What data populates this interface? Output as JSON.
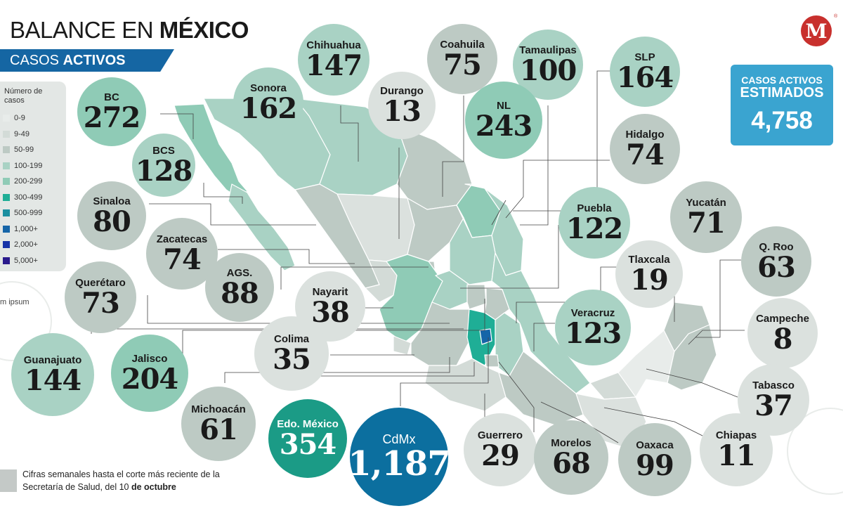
{
  "title": {
    "light": "BALANCE EN ",
    "bold": "MÉXICO"
  },
  "subtitle": {
    "light": "CASOS ",
    "bold": "ACTIVOS"
  },
  "legend": {
    "title": "Número de casos",
    "items": [
      {
        "label": "0-9",
        "color": "#e8ecea"
      },
      {
        "label": "9-49",
        "color": "#d3dbd7"
      },
      {
        "label": "50-99",
        "color": "#bdcac4"
      },
      {
        "label": "100-199",
        "color": "#a9d2c4"
      },
      {
        "label": "200-299",
        "color": "#8fcbb6"
      },
      {
        "label": "300-499",
        "color": "#1fae96"
      },
      {
        "label": "500-999",
        "color": "#1a8fa0"
      },
      {
        "label": "1,000+",
        "color": "#1565a8"
      },
      {
        "label": "2,000+",
        "color": "#1733a8"
      },
      {
        "label": "5,000+",
        "color": "#2a1a8c"
      }
    ]
  },
  "logo": {
    "letter": "M",
    "mark": "®"
  },
  "estimate": {
    "line1": "CASOS ACTIVOS",
    "line2": "ESTIMADOS",
    "value": "4,758"
  },
  "lorem_text": "m ipsum",
  "footer": {
    "line1": "Cifras semanales hasta el corte más reciente de la",
    "line2_prefix": "Secretaría de Salud, del 10 ",
    "line2_bold": "de octubre"
  },
  "states": [
    {
      "key": "bc",
      "name": "BC",
      "value": "272"
    },
    {
      "key": "sonora",
      "name": "Sonora",
      "value": "162"
    },
    {
      "key": "chihuahua",
      "name": "Chihuahua",
      "value": "147"
    },
    {
      "key": "coahuila",
      "name": "Coahuila",
      "value": "75"
    },
    {
      "key": "durango",
      "name": "Durango",
      "value": "13"
    },
    {
      "key": "tamaulipas",
      "name": "Tamaulipas",
      "value": "100"
    },
    {
      "key": "slp",
      "name": "SLP",
      "value": "164"
    },
    {
      "key": "nl",
      "name": "NL",
      "value": "243"
    },
    {
      "key": "hidalgo",
      "name": "Hidalgo",
      "value": "74"
    },
    {
      "key": "bcs",
      "name": "BCS",
      "value": "128"
    },
    {
      "key": "sinaloa",
      "name": "Sinaloa",
      "value": "80"
    },
    {
      "key": "zacatecas",
      "name": "Zacatecas",
      "value": "74"
    },
    {
      "key": "puebla",
      "name": "Puebla",
      "value": "122"
    },
    {
      "key": "yucatan",
      "name": "Yucatán",
      "value": "71"
    },
    {
      "key": "queretaro",
      "name": "Querétaro",
      "value": "73"
    },
    {
      "key": "ags",
      "name": "AGS.",
      "value": "88"
    },
    {
      "key": "nayarit",
      "name": "Nayarit",
      "value": "38"
    },
    {
      "key": "tlaxcala",
      "name": "Tlaxcala",
      "value": "19"
    },
    {
      "key": "qroo",
      "name": "Q. Roo",
      "value": "63"
    },
    {
      "key": "veracruz",
      "name": "Veracruz",
      "value": "123"
    },
    {
      "key": "campeche",
      "name": "Campeche",
      "value": "8"
    },
    {
      "key": "colima",
      "name": "Colima",
      "value": "35"
    },
    {
      "key": "guanajuato",
      "name": "Guanajuato",
      "value": "144"
    },
    {
      "key": "jalisco",
      "name": "Jalisco",
      "value": "204"
    },
    {
      "key": "tabasco",
      "name": "Tabasco",
      "value": "37"
    },
    {
      "key": "michoacan",
      "name": "Michoacán",
      "value": "61"
    },
    {
      "key": "edomex",
      "name": "Edo. México",
      "value": "354"
    },
    {
      "key": "cdmx",
      "name": "CdMx",
      "value": "1,187"
    },
    {
      "key": "guerrero",
      "name": "Guerrero",
      "value": "29"
    },
    {
      "key": "morelos",
      "name": "Morelos",
      "value": "68"
    },
    {
      "key": "oaxaca",
      "name": "Oaxaca",
      "value": "99"
    },
    {
      "key": "chiapas",
      "name": "Chiapas",
      "value": "11"
    }
  ]
}
